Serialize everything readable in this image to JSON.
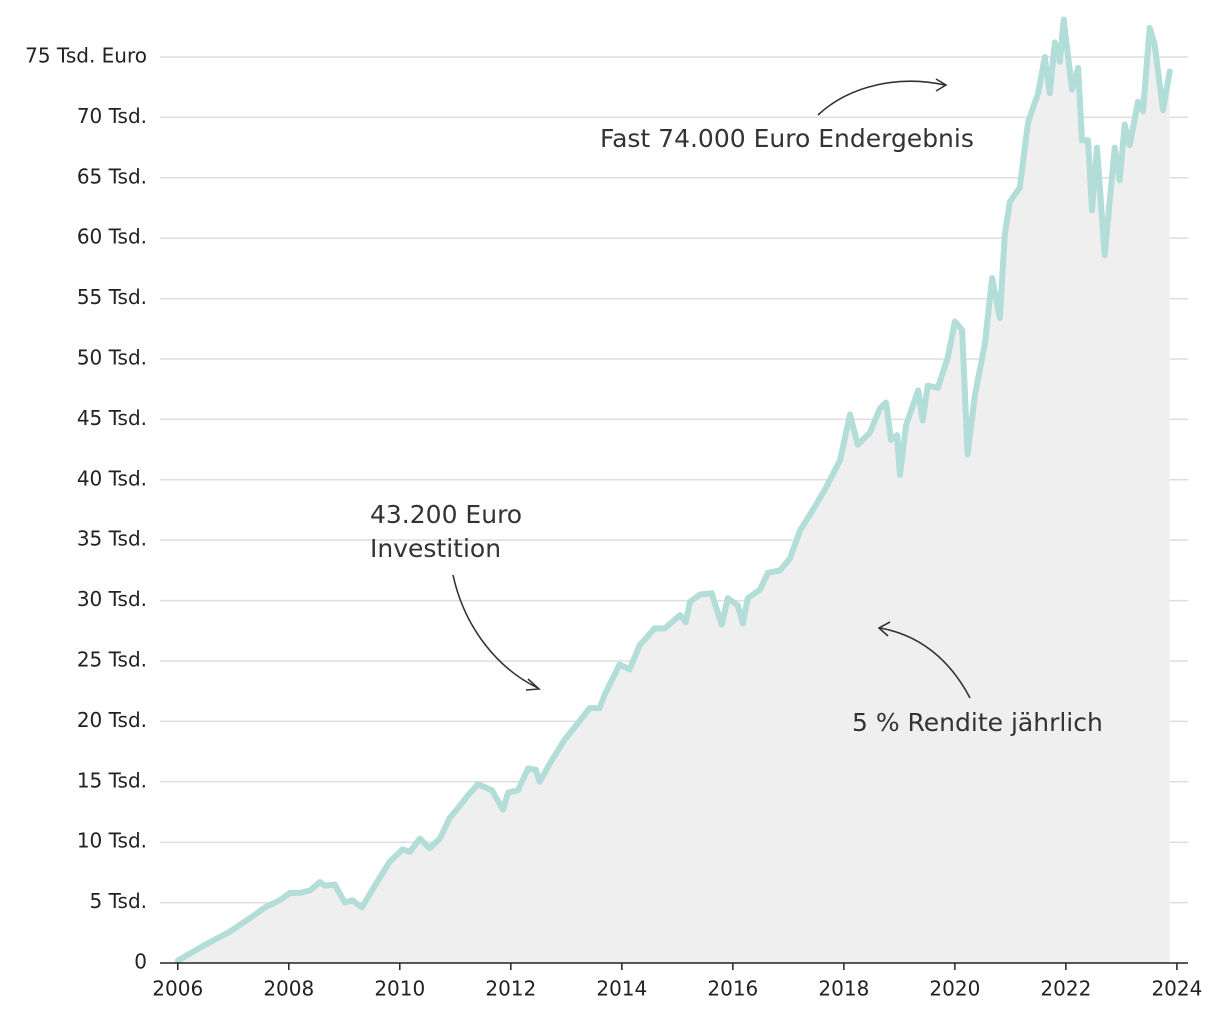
{
  "chart_data": {
    "type": "line",
    "annotations": [
      "Fast 74.000 Euro Endergebnis",
      "43.200 Euro",
      "Investition",
      "5 % Rendite jährlich"
    ],
    "x": [
      2006.0,
      2006.49,
      2006.94,
      2007.39,
      2007.57,
      2007.84,
      2008.02,
      2008.2,
      2008.38,
      2008.56,
      2008.65,
      2008.83,
      2009.01,
      2009.14,
      2009.32,
      2009.55,
      2009.82,
      2010.05,
      2010.18,
      2010.36,
      2010.54,
      2010.72,
      2010.9,
      2011.08,
      2011.23,
      2011.41,
      2011.66,
      2011.86,
      2011.95,
      2012.13,
      2012.31,
      2012.45,
      2012.52,
      2012.74,
      2012.97,
      2013.15,
      2013.42,
      2013.6,
      2013.69,
      2013.96,
      2014.14,
      2014.32,
      2014.59,
      2014.77,
      2015.05,
      2015.15,
      2015.23,
      2015.41,
      2015.62,
      2015.8,
      2015.91,
      2016.09,
      2016.18,
      2016.27,
      2016.49,
      2016.63,
      2016.85,
      2017.03,
      2017.21,
      2017.48,
      2017.66,
      2017.93,
      2018.11,
      2018.25,
      2018.47,
      2018.65,
      2018.76,
      2018.85,
      2018.96,
      2019.01,
      2019.12,
      2019.34,
      2019.42,
      2019.51,
      2019.69,
      2019.87,
      2020.0,
      2020.13,
      2020.23,
      2020.36,
      2020.54,
      2020.67,
      2020.81,
      2020.9,
      2020.99,
      2021.17,
      2021.32,
      2021.5,
      2021.62,
      2021.71,
      2021.8,
      2021.89,
      2021.96,
      2022.11,
      2022.22,
      2022.29,
      2022.4,
      2022.47,
      2022.56,
      2022.7,
      2022.88,
      2022.97,
      2023.06,
      2023.15,
      2023.3,
      2023.39,
      2023.51,
      2023.6,
      2023.75,
      2023.87
    ],
    "values": [
      0.2,
      1.5,
      2.6,
      4.0,
      4.6,
      5.2,
      5.8,
      5.8,
      6.0,
      6.7,
      6.4,
      6.5,
      5.0,
      5.2,
      4.6,
      6.4,
      8.4,
      9.4,
      9.2,
      10.3,
      9.5,
      10.3,
      12.0,
      13.0,
      13.9,
      14.8,
      14.3,
      12.7,
      14.1,
      14.3,
      16.1,
      16.0,
      15.0,
      16.8,
      18.5,
      19.5,
      21.1,
      21.1,
      22.2,
      24.7,
      24.3,
      26.3,
      27.7,
      27.7,
      28.8,
      28.2,
      29.9,
      30.5,
      30.6,
      28.0,
      30.2,
      29.6,
      28.1,
      30.2,
      30.9,
      32.3,
      32.5,
      33.5,
      35.8,
      37.8,
      39.2,
      41.6,
      45.4,
      42.9,
      43.9,
      45.9,
      46.4,
      43.3,
      43.7,
      40.4,
      44.5,
      47.4,
      44.9,
      47.8,
      47.6,
      50.1,
      53.1,
      52.4,
      42.1,
      47.0,
      51.2,
      56.7,
      53.4,
      60.3,
      63.0,
      64.2,
      69.6,
      72.0,
      75.0,
      72.0,
      76.2,
      74.6,
      78.1,
      72.3,
      74.1,
      68.1,
      68.1,
      62.3,
      67.5,
      58.6,
      67.5,
      64.8,
      69.4,
      67.7,
      71.3,
      70.5,
      77.4,
      76.0,
      70.6,
      73.8
    ],
    "color": "#b3ddd8",
    "area_color": "#efefef",
    "xlim": [
      2005.68,
      2024.2
    ],
    "xticks": [
      2006,
      2008,
      2010,
      2012,
      2014,
      2016,
      2018,
      2020,
      2022,
      2024
    ],
    "ylim": [
      0,
      79.5
    ],
    "yticks": [
      0,
      {
        "value": 5,
        "label": "5 Tsd."
      },
      {
        "value": 10,
        "label": "10 Tsd."
      },
      {
        "value": 15,
        "label": "15 Tsd."
      },
      {
        "value": 20,
        "label": "20 Tsd."
      },
      {
        "value": 25,
        "label": "25 Tsd."
      },
      {
        "value": 30,
        "label": "30 Tsd."
      },
      {
        "value": 35,
        "label": "35 Tsd."
      },
      {
        "value": 40,
        "label": "40 Tsd."
      },
      {
        "value": 45,
        "label": "45 Tsd."
      },
      {
        "value": 50,
        "label": "50 Tsd."
      },
      {
        "value": 55,
        "label": "55 Tsd."
      },
      {
        "value": 60,
        "label": "60 Tsd."
      },
      {
        "value": 65,
        "label": "65 Tsd."
      },
      {
        "value": 70,
        "label": "70 Tsd."
      },
      {
        "value": 75,
        "label": "75 Tsd. Euro"
      }
    ],
    "grid": true
  }
}
